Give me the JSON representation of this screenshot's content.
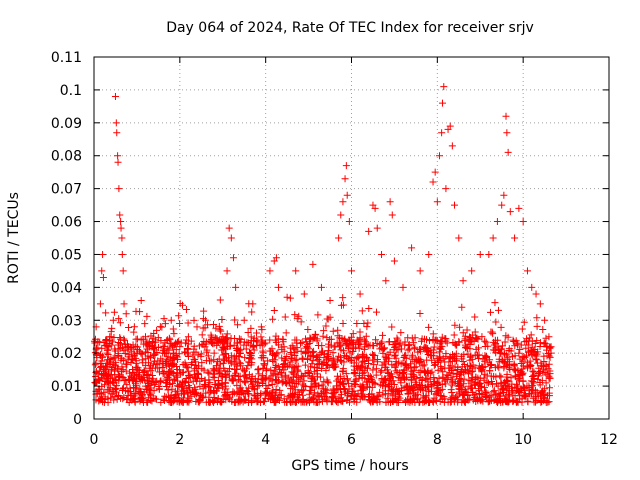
{
  "chart_data": {
    "type": "scatter",
    "title": "Day 064 of 2024, Rate Of TEC Index for receiver srjv",
    "xlabel": "GPS time / hours",
    "ylabel": "ROTI / TECUs",
    "xlim": [
      0,
      12
    ],
    "ylim": [
      0,
      0.11
    ],
    "xticks": [
      0,
      2,
      4,
      6,
      8,
      10,
      12
    ],
    "xtick_labels": [
      "0",
      "2",
      "4",
      "6",
      "8",
      "10",
      "12"
    ],
    "yticks": [
      0,
      0.01,
      0.02,
      0.03,
      0.04,
      0.05,
      0.06,
      0.07,
      0.08,
      0.09,
      0.1,
      0.11
    ],
    "ytick_labels": [
      "0",
      "0.01",
      "0.02",
      "0.03",
      "0.04",
      "0.05",
      "0.06",
      "0.07",
      "0.08",
      "0.09",
      "0.1",
      "0.11"
    ],
    "grid": true,
    "marker": "+",
    "color": "#ff0000",
    "series": [
      {
        "name": "ROTI",
        "points": [
          [
            0.05,
            0.028
          ],
          [
            0.1,
            0.012
          ],
          [
            0.15,
            0.035
          ],
          [
            0.18,
            0.045
          ],
          [
            0.2,
            0.05
          ],
          [
            0.22,
            0.043
          ],
          [
            0.25,
            0.015
          ],
          [
            0.3,
            0.02
          ],
          [
            0.35,
            0.018
          ],
          [
            0.4,
            0.025
          ],
          [
            0.45,
            0.03
          ],
          [
            0.5,
            0.098
          ],
          [
            0.52,
            0.09
          ],
          [
            0.53,
            0.087
          ],
          [
            0.55,
            0.08
          ],
          [
            0.56,
            0.078
          ],
          [
            0.58,
            0.07
          ],
          [
            0.6,
            0.062
          ],
          [
            0.62,
            0.06
          ],
          [
            0.63,
            0.058
          ],
          [
            0.65,
            0.055
          ],
          [
            0.66,
            0.05
          ],
          [
            0.68,
            0.045
          ],
          [
            0.7,
            0.035
          ],
          [
            0.75,
            0.032
          ],
          [
            0.8,
            0.022
          ],
          [
            0.9,
            0.018
          ],
          [
            1.0,
            0.02
          ],
          [
            1.1,
            0.036
          ],
          [
            1.2,
            0.025
          ],
          [
            1.4,
            0.021
          ],
          [
            1.6,
            0.02
          ],
          [
            1.8,
            0.03
          ],
          [
            2.0,
            0.022
          ],
          [
            2.2,
            0.025
          ],
          [
            2.4,
            0.028
          ],
          [
            2.6,
            0.03
          ],
          [
            2.8,
            0.02
          ],
          [
            3.0,
            0.025
          ],
          [
            3.1,
            0.045
          ],
          [
            3.15,
            0.058
          ],
          [
            3.2,
            0.055
          ],
          [
            3.25,
            0.049
          ],
          [
            3.3,
            0.04
          ],
          [
            3.5,
            0.03
          ],
          [
            3.7,
            0.035
          ],
          [
            3.9,
            0.028
          ],
          [
            4.1,
            0.045
          ],
          [
            4.2,
            0.048
          ],
          [
            4.25,
            0.049
          ],
          [
            4.3,
            0.04
          ],
          [
            4.5,
            0.037
          ],
          [
            4.7,
            0.045
          ],
          [
            4.9,
            0.038
          ],
          [
            5.1,
            0.047
          ],
          [
            5.3,
            0.04
          ],
          [
            5.5,
            0.036
          ],
          [
            5.7,
            0.055
          ],
          [
            5.75,
            0.062
          ],
          [
            5.8,
            0.066
          ],
          [
            5.85,
            0.073
          ],
          [
            5.88,
            0.077
          ],
          [
            5.9,
            0.068
          ],
          [
            5.95,
            0.06
          ],
          [
            6.0,
            0.045
          ],
          [
            6.2,
            0.038
          ],
          [
            6.4,
            0.057
          ],
          [
            6.5,
            0.065
          ],
          [
            6.55,
            0.064
          ],
          [
            6.6,
            0.058
          ],
          [
            6.7,
            0.05
          ],
          [
            6.8,
            0.042
          ],
          [
            6.9,
            0.066
          ],
          [
            6.95,
            0.062
          ],
          [
            7.0,
            0.048
          ],
          [
            7.2,
            0.04
          ],
          [
            7.4,
            0.052
          ],
          [
            7.6,
            0.045
          ],
          [
            7.8,
            0.05
          ],
          [
            7.9,
            0.072
          ],
          [
            7.95,
            0.075
          ],
          [
            8.0,
            0.066
          ],
          [
            8.05,
            0.08
          ],
          [
            8.1,
            0.087
          ],
          [
            8.12,
            0.096
          ],
          [
            8.15,
            0.101
          ],
          [
            8.2,
            0.07
          ],
          [
            8.25,
            0.088
          ],
          [
            8.3,
            0.089
          ],
          [
            8.35,
            0.083
          ],
          [
            8.4,
            0.065
          ],
          [
            8.5,
            0.055
          ],
          [
            8.6,
            0.042
          ],
          [
            8.8,
            0.045
          ],
          [
            9.0,
            0.05
          ],
          [
            9.2,
            0.05
          ],
          [
            9.3,
            0.055
          ],
          [
            9.4,
            0.06
          ],
          [
            9.5,
            0.065
          ],
          [
            9.55,
            0.068
          ],
          [
            9.6,
            0.092
          ],
          [
            9.62,
            0.087
          ],
          [
            9.65,
            0.081
          ],
          [
            9.7,
            0.063
          ],
          [
            9.8,
            0.055
          ],
          [
            9.9,
            0.064
          ],
          [
            10.0,
            0.06
          ],
          [
            10.1,
            0.045
          ],
          [
            10.2,
            0.04
          ],
          [
            10.3,
            0.038
          ],
          [
            10.4,
            0.035
          ],
          [
            10.5,
            0.03
          ],
          [
            10.6,
            0.025
          ],
          [
            10.65,
            0.02
          ]
        ],
        "baseline_band": {
          "x_range": [
            0,
            10.65
          ],
          "y_range": [
            0.005,
            0.025
          ],
          "note": "dense cluster of points across the full time span"
        }
      }
    ]
  }
}
